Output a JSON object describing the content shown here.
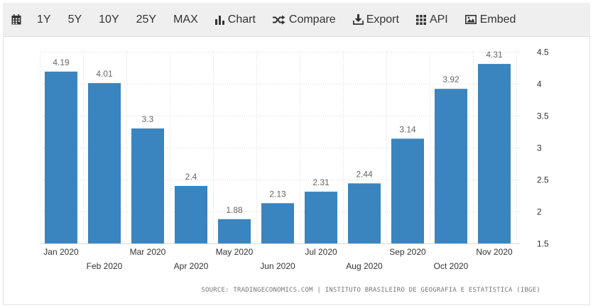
{
  "toolbar": {
    "items": [
      {
        "label": "",
        "icon": "calendar-icon"
      },
      {
        "label": "1Y"
      },
      {
        "label": "5Y"
      },
      {
        "label": "10Y"
      },
      {
        "label": "25Y"
      },
      {
        "label": "MAX"
      },
      {
        "label": "Chart",
        "icon": "bar-chart-icon"
      },
      {
        "label": "Compare",
        "icon": "shuffle-icon"
      },
      {
        "label": "Export",
        "icon": "download-icon"
      },
      {
        "label": "API",
        "icon": "grid-icon"
      },
      {
        "label": "Embed",
        "icon": "image-icon"
      }
    ]
  },
  "colors": {
    "bar": "#3a84bf",
    "grid": "#d9d9d9",
    "toolbar_bg": "#efefef"
  },
  "chart_data": {
    "type": "bar",
    "categories": [
      "Jan 2020",
      "Feb 2020",
      "Mar 2020",
      "Apr 2020",
      "May 2020",
      "Jun 2020",
      "Jul 2020",
      "Aug 2020",
      "Sep 2020",
      "Oct 2020",
      "Nov 2020"
    ],
    "values": [
      4.19,
      4.01,
      3.3,
      2.4,
      1.88,
      2.13,
      2.31,
      2.44,
      3.14,
      3.92,
      4.31
    ],
    "value_labels": [
      "4.19",
      "4.01",
      "3.3",
      "2.4",
      "1.88",
      "2.13",
      "2.31",
      "2.44",
      "3.14",
      "3.92",
      "4.31"
    ],
    "ylim": [
      1.5,
      4.5
    ],
    "yticks": [
      1.5,
      2,
      2.5,
      3,
      3.5,
      4,
      4.5
    ],
    "ytick_labels": [
      "1.5",
      "2",
      "2.5",
      "3",
      "3.5",
      "4",
      "4.5"
    ],
    "y_axis_side": "right",
    "grid": true,
    "title": "",
    "xlabel": "",
    "ylabel": "",
    "source": "SOURCE: TRADINGECONOMICS.COM | INSTITUTO BRASILEIRO DE GEOGRAFIA E ESTATÍSTICA (IBGE)"
  }
}
